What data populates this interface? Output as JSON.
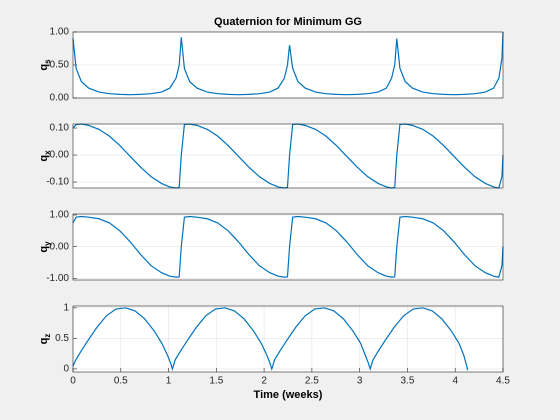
{
  "chart_data": [
    {
      "type": "line",
      "title": "Quaternion for Minimum GG",
      "ylabel": "q",
      "ylabel_subscript": "s",
      "x": [
        0,
        0.03,
        0.08,
        0.15,
        0.25,
        0.35,
        0.45,
        0.55,
        0.65,
        0.75,
        0.85,
        0.93,
        0.99,
        1.02,
        1.04,
        1.07,
        1.12,
        1.19,
        1.29,
        1.39,
        1.49,
        1.59,
        1.69,
        1.79,
        1.89,
        1.97,
        2.03,
        2.06,
        2.08,
        2.11,
        2.16,
        2.23,
        2.33,
        2.43,
        2.53,
        2.63,
        2.73,
        2.83,
        2.93,
        3.01,
        3.06,
        3.09,
        3.11,
        3.14,
        3.19,
        3.26,
        3.36,
        3.46,
        3.56,
        3.66,
        3.76,
        3.86,
        3.96,
        4.04,
        4.09,
        4.12,
        4.13
      ],
      "series": [
        {
          "color": "#0072bd",
          "values": [
            0.9,
            0.45,
            0.25,
            0.15,
            0.09,
            0.065,
            0.055,
            0.05,
            0.055,
            0.065,
            0.09,
            0.15,
            0.3,
            0.5,
            0.92,
            0.45,
            0.25,
            0.15,
            0.09,
            0.065,
            0.055,
            0.05,
            0.055,
            0.065,
            0.09,
            0.15,
            0.3,
            0.5,
            0.8,
            0.45,
            0.25,
            0.15,
            0.09,
            0.065,
            0.055,
            0.05,
            0.055,
            0.065,
            0.09,
            0.15,
            0.3,
            0.5,
            0.9,
            0.45,
            0.25,
            0.15,
            0.09,
            0.065,
            0.055,
            0.05,
            0.055,
            0.065,
            0.09,
            0.15,
            0.3,
            0.6,
            1.0
          ]
        }
      ],
      "xlim": [
        0,
        4.13
      ],
      "ylim": [
        0,
        1
      ],
      "yticks": [
        {
          "value": 0,
          "label": "0.00"
        },
        {
          "value": 0.5,
          "label": "0.50"
        },
        {
          "value": 1,
          "label": "1.00"
        }
      ],
      "grid": true
    },
    {
      "type": "line",
      "ylabel": "q",
      "ylabel_subscript": "x",
      "x": [
        0,
        0.03,
        0.08,
        0.15,
        0.25,
        0.35,
        0.45,
        0.55,
        0.65,
        0.75,
        0.85,
        0.93,
        0.99,
        1.02,
        1.04,
        1.07,
        1.12,
        1.19,
        1.29,
        1.39,
        1.49,
        1.59,
        1.69,
        1.79,
        1.89,
        1.97,
        2.03,
        2.06,
        2.08,
        2.11,
        2.16,
        2.23,
        2.33,
        2.43,
        2.53,
        2.63,
        2.73,
        2.83,
        2.93,
        3.01,
        3.06,
        3.09,
        3.11,
        3.14,
        3.19,
        3.26,
        3.36,
        3.46,
        3.56,
        3.66,
        3.76,
        3.86,
        3.96,
        4.04,
        4.09,
        4.12,
        4.13
      ],
      "series": [
        {
          "color": "#0072bd",
          "values": [
            0.1,
            0.113,
            0.115,
            0.11,
            0.095,
            0.07,
            0.035,
            -0.005,
            -0.045,
            -0.08,
            -0.105,
            -0.118,
            -0.122,
            -0.12,
            0,
            0.113,
            0.115,
            0.11,
            0.095,
            0.07,
            0.035,
            -0.005,
            -0.045,
            -0.08,
            -0.105,
            -0.118,
            -0.122,
            -0.12,
            0,
            0.113,
            0.115,
            0.11,
            0.095,
            0.07,
            0.035,
            -0.005,
            -0.045,
            -0.08,
            -0.105,
            -0.118,
            -0.122,
            -0.12,
            0,
            0.113,
            0.115,
            0.11,
            0.095,
            0.07,
            0.035,
            -0.005,
            -0.045,
            -0.08,
            -0.105,
            -0.118,
            -0.122,
            -0.08,
            0
          ]
        }
      ],
      "xlim": [
        0,
        4.13
      ],
      "ylim": [
        -0.122,
        0.115
      ],
      "yticks": [
        {
          "value": -0.1,
          "label": "-0.10"
        },
        {
          "value": 0,
          "label": "0.00"
        },
        {
          "value": 0.1,
          "label": "0.10"
        }
      ],
      "grid": true
    },
    {
      "type": "line",
      "ylabel": "q",
      "ylabel_subscript": "y",
      "x": [
        0,
        0.03,
        0.08,
        0.15,
        0.25,
        0.35,
        0.45,
        0.55,
        0.65,
        0.75,
        0.85,
        0.93,
        0.99,
        1.02,
        1.04,
        1.07,
        1.12,
        1.19,
        1.29,
        1.39,
        1.49,
        1.59,
        1.69,
        1.79,
        1.89,
        1.97,
        2.03,
        2.06,
        2.08,
        2.11,
        2.16,
        2.23,
        2.33,
        2.43,
        2.53,
        2.63,
        2.73,
        2.83,
        2.93,
        3.01,
        3.06,
        3.09,
        3.11,
        3.14,
        3.19,
        3.26,
        3.36,
        3.46,
        3.56,
        3.66,
        3.76,
        3.86,
        3.96,
        4.04,
        4.09,
        4.12,
        4.13
      ],
      "series": [
        {
          "color": "#0072bd",
          "values": [
            0.75,
            0.93,
            0.95,
            0.93,
            0.88,
            0.75,
            0.5,
            0.15,
            -0.25,
            -0.6,
            -0.82,
            -0.93,
            -0.96,
            -0.95,
            0,
            0.93,
            0.95,
            0.93,
            0.88,
            0.75,
            0.5,
            0.15,
            -0.25,
            -0.6,
            -0.82,
            -0.93,
            -0.96,
            -0.95,
            0,
            0.93,
            0.95,
            0.93,
            0.88,
            0.75,
            0.5,
            0.15,
            -0.25,
            -0.6,
            -0.82,
            -0.93,
            -0.96,
            -0.95,
            0,
            0.93,
            0.95,
            0.93,
            0.88,
            0.75,
            0.5,
            0.15,
            -0.25,
            -0.6,
            -0.82,
            -0.93,
            -0.96,
            -0.6,
            0
          ]
        }
      ],
      "xlim": [
        0,
        4.13
      ],
      "ylim": [
        -1.05,
        1.03
      ],
      "yticks": [
        {
          "value": -1,
          "label": "-1.00"
        },
        {
          "value": 0,
          "label": "0.00"
        },
        {
          "value": 1,
          "label": "1.00"
        }
      ],
      "grid": true
    },
    {
      "type": "line",
      "ylabel": "q",
      "ylabel_subscript": "z",
      "xlabel": "Time (weeks)",
      "x": [
        0,
        0.03,
        0.08,
        0.15,
        0.25,
        0.35,
        0.45,
        0.55,
        0.65,
        0.75,
        0.85,
        0.93,
        0.99,
        1.02,
        1.04,
        1.07,
        1.12,
        1.19,
        1.29,
        1.39,
        1.49,
        1.59,
        1.69,
        1.79,
        1.89,
        1.97,
        2.03,
        2.06,
        2.08,
        2.11,
        2.16,
        2.23,
        2.33,
        2.43,
        2.53,
        2.63,
        2.73,
        2.83,
        2.93,
        3.01,
        3.06,
        3.09,
        3.11,
        3.14,
        3.19,
        3.26,
        3.36,
        3.46,
        3.56,
        3.66,
        3.76,
        3.86,
        3.96,
        4.04,
        4.09,
        4.12,
        4.13
      ],
      "series": [
        {
          "color": "#0072bd",
          "values": [
            0.05,
            0.15,
            0.28,
            0.45,
            0.68,
            0.87,
            0.98,
            1.0,
            0.95,
            0.82,
            0.62,
            0.42,
            0.22,
            0.1,
            0,
            0.15,
            0.28,
            0.45,
            0.68,
            0.87,
            0.98,
            1.0,
            0.95,
            0.82,
            0.62,
            0.42,
            0.22,
            0.1,
            0,
            0.15,
            0.28,
            0.45,
            0.68,
            0.87,
            0.98,
            1.0,
            0.95,
            0.82,
            0.62,
            0.42,
            0.22,
            0.1,
            0,
            0.15,
            0.28,
            0.45,
            0.68,
            0.87,
            0.98,
            1.0,
            0.95,
            0.82,
            0.62,
            0.42,
            0.22,
            0.05,
            -0.02
          ]
        }
      ],
      "xlim": [
        0,
        4.5
      ],
      "ylim": [
        -0.05,
        1.03
      ],
      "xticks": [
        0,
        0.5,
        1,
        1.5,
        2,
        2.5,
        3,
        3.5,
        4,
        4.5
      ],
      "yticks": [
        0,
        0.5,
        1
      ],
      "grid": true
    }
  ]
}
